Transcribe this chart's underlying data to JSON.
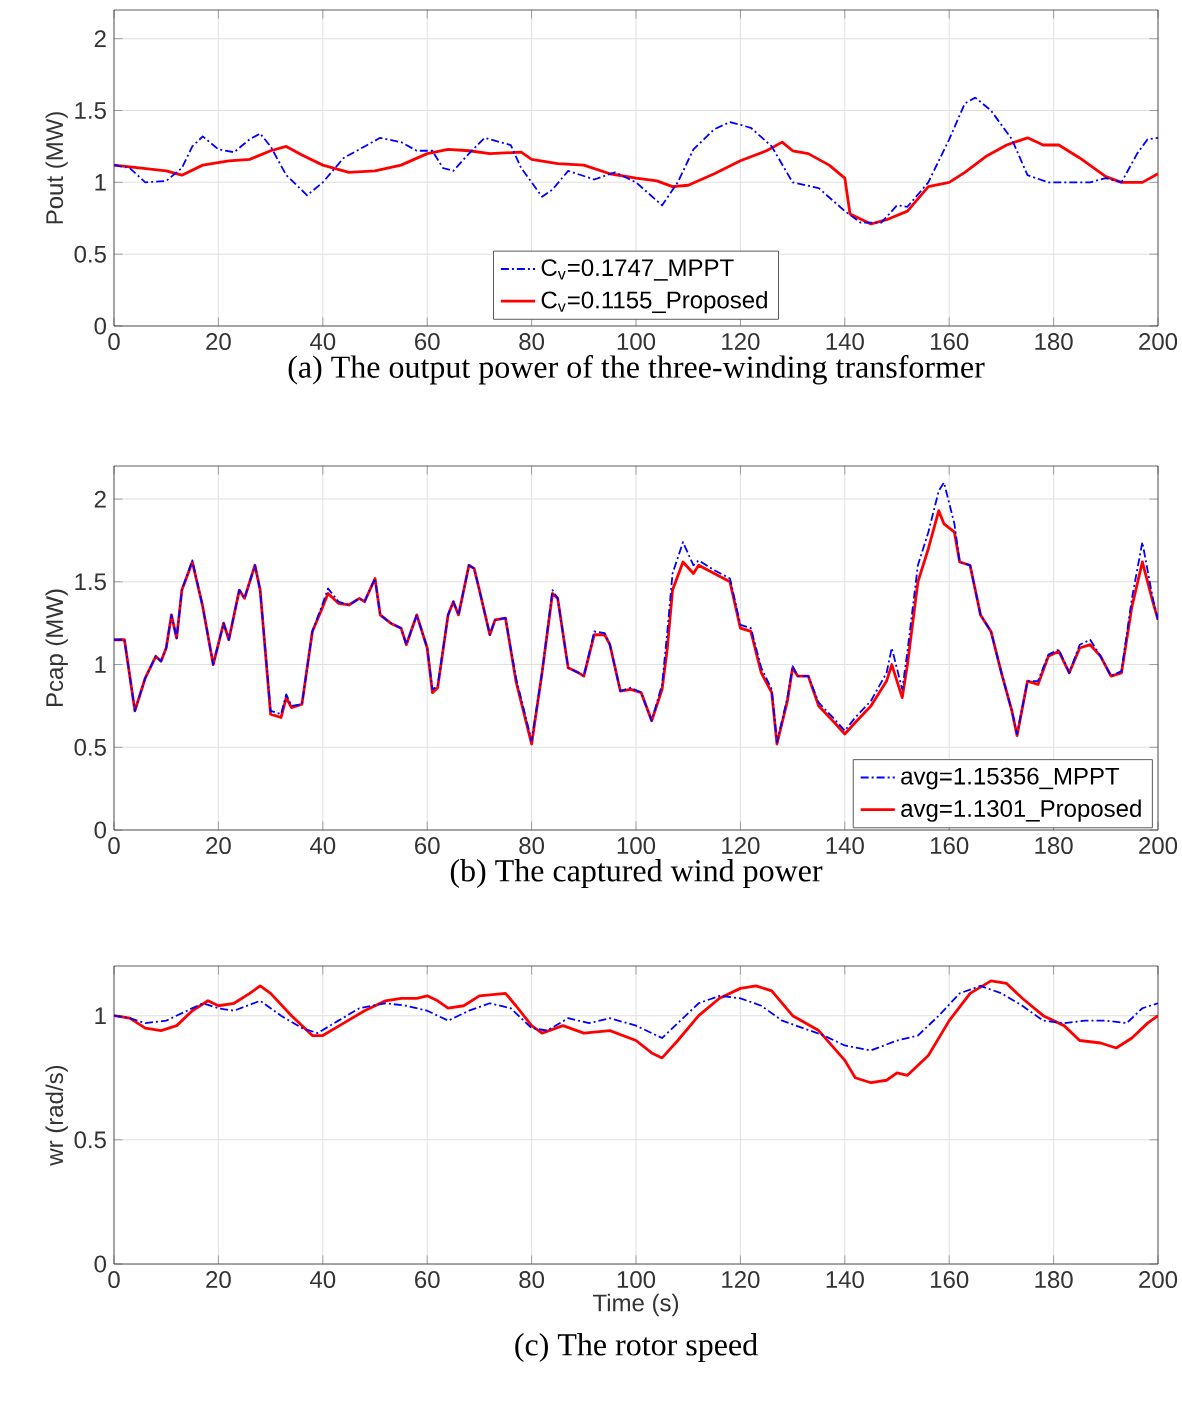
{
  "chart_data": [
    {
      "type": "line",
      "title": "(a) The output power of the three-winding transformer",
      "ylabel": "Pout (MW)",
      "xlim": [
        0,
        200
      ],
      "ylim": [
        0,
        2.2
      ],
      "xticks": [
        0,
        20,
        40,
        60,
        80,
        100,
        120,
        140,
        160,
        180,
        200
      ],
      "yticks": [
        0,
        0.5,
        1,
        1.5,
        2
      ],
      "grid": true,
      "legend": "bottom",
      "series": [
        {
          "name": "C$_{v}$=0.1747_MPPT",
          "color": "#0000ff",
          "line_style": "dashed",
          "x": [
            0,
            3,
            6,
            10,
            13,
            15,
            17,
            20,
            23,
            26,
            28,
            30,
            33,
            37,
            40,
            44,
            48,
            51,
            55,
            58,
            61,
            63,
            65,
            68,
            71,
            76,
            78,
            82,
            84,
            87,
            92,
            96,
            100,
            105,
            108,
            111,
            115,
            118,
            122,
            126,
            130,
            135,
            140,
            143,
            147,
            150,
            152,
            156,
            160,
            163,
            165,
            168,
            172,
            175,
            179,
            183,
            187,
            190,
            193,
            196,
            198,
            200
          ],
          "values": [
            1.12,
            1.1,
            1.0,
            1.01,
            1.1,
            1.25,
            1.32,
            1.23,
            1.21,
            1.3,
            1.34,
            1.25,
            1.05,
            0.91,
            1.0,
            1.17,
            1.25,
            1.31,
            1.28,
            1.22,
            1.22,
            1.1,
            1.08,
            1.2,
            1.31,
            1.26,
            1.1,
            0.9,
            0.95,
            1.08,
            1.02,
            1.07,
            1.0,
            0.84,
            1.0,
            1.23,
            1.37,
            1.42,
            1.38,
            1.25,
            1.0,
            0.96,
            0.8,
            0.72,
            0.72,
            0.84,
            0.83,
            1.0,
            1.3,
            1.55,
            1.59,
            1.5,
            1.3,
            1.05,
            1.0,
            1.0,
            1.0,
            1.03,
            1.0,
            1.2,
            1.3,
            1.31
          ]
        },
        {
          "name": "C$_{v}$=0.1155_Proposed",
          "color": "#ff0000",
          "line_style": "solid",
          "x": [
            0,
            5,
            10,
            13,
            17,
            22,
            26,
            30,
            33,
            36,
            40,
            45,
            50,
            55,
            60,
            64,
            68,
            72,
            78,
            80,
            85,
            90,
            95,
            100,
            104,
            107,
            110,
            115,
            120,
            125,
            128,
            130,
            133,
            137,
            140,
            141,
            145,
            148,
            152,
            156,
            160,
            163,
            167,
            171,
            175,
            178,
            181,
            185,
            190,
            193,
            197,
            200
          ],
          "values": [
            1.12,
            1.1,
            1.08,
            1.05,
            1.12,
            1.15,
            1.16,
            1.22,
            1.25,
            1.19,
            1.12,
            1.07,
            1.08,
            1.12,
            1.2,
            1.23,
            1.22,
            1.2,
            1.21,
            1.16,
            1.13,
            1.12,
            1.06,
            1.03,
            1.01,
            0.97,
            0.98,
            1.06,
            1.15,
            1.22,
            1.28,
            1.22,
            1.2,
            1.12,
            1.03,
            0.78,
            0.71,
            0.74,
            0.8,
            0.97,
            1.0,
            1.07,
            1.18,
            1.26,
            1.31,
            1.26,
            1.26,
            1.17,
            1.04,
            1.0,
            1.0,
            1.06
          ]
        }
      ]
    },
    {
      "type": "line",
      "title": "(b) The captured wind power",
      "ylabel": "Pcap (MW)",
      "xlim": [
        0,
        200
      ],
      "ylim": [
        0,
        2.2
      ],
      "xticks": [
        0,
        20,
        40,
        60,
        80,
        100,
        120,
        140,
        160,
        180,
        200
      ],
      "yticks": [
        0,
        0.5,
        1,
        1.5,
        2
      ],
      "grid": true,
      "legend": "bottom right",
      "series": [
        {
          "name": "avg=1.15356_MPPT",
          "color": "#0000ff",
          "line_style": "dashed",
          "x": [
            0,
            2,
            4,
            6,
            8,
            9,
            10,
            11,
            12,
            13,
            15,
            17,
            19,
            21,
            22,
            24,
            25,
            27,
            28,
            30,
            32,
            33,
            34,
            36,
            38,
            40,
            41,
            43,
            45,
            47,
            48,
            50,
            51,
            53,
            55,
            56,
            58,
            60,
            61,
            62,
            64,
            65,
            66,
            68,
            69,
            70,
            72,
            73,
            75,
            77,
            80,
            82,
            84,
            85,
            87,
            89,
            90,
            92,
            94,
            95,
            97,
            99,
            101,
            103,
            105,
            106,
            107,
            109,
            111,
            112,
            115,
            118,
            120,
            122,
            124,
            126,
            127,
            129,
            130,
            131,
            133,
            135,
            138,
            140,
            142,
            145,
            148,
            149,
            151,
            152,
            154,
            156,
            158,
            159,
            161,
            162,
            164,
            166,
            168,
            170,
            172,
            173,
            175,
            177,
            179,
            181,
            183,
            185,
            187,
            189,
            191,
            193,
            195,
            197,
            199,
            200
          ],
          "values": [
            1.15,
            1.15,
            0.72,
            0.92,
            1.05,
            1.02,
            1.1,
            1.3,
            1.16,
            1.45,
            1.63,
            1.35,
            1.0,
            1.25,
            1.15,
            1.45,
            1.4,
            1.6,
            1.45,
            0.72,
            0.7,
            0.82,
            0.75,
            0.76,
            1.2,
            1.37,
            1.46,
            1.38,
            1.36,
            1.4,
            1.38,
            1.52,
            1.3,
            1.25,
            1.22,
            1.12,
            1.3,
            1.1,
            0.85,
            0.87,
            1.3,
            1.38,
            1.3,
            1.6,
            1.58,
            1.45,
            1.18,
            1.27,
            1.28,
            0.92,
            0.54,
            0.95,
            1.45,
            1.4,
            0.98,
            0.95,
            0.93,
            1.2,
            1.19,
            1.12,
            0.84,
            0.86,
            0.83,
            0.66,
            0.88,
            1.2,
            1.55,
            1.74,
            1.6,
            1.63,
            1.57,
            1.52,
            1.24,
            1.22,
            0.98,
            0.85,
            0.53,
            0.8,
            0.99,
            0.93,
            0.93,
            0.77,
            0.67,
            0.6,
            0.68,
            0.78,
            0.95,
            1.1,
            0.85,
            1.08,
            1.6,
            1.8,
            2.05,
            2.1,
            1.85,
            1.62,
            1.6,
            1.3,
            1.2,
            0.95,
            0.72,
            0.58,
            0.9,
            0.9,
            1.06,
            1.09,
            0.95,
            1.12,
            1.15,
            1.05,
            0.93,
            0.96,
            1.4,
            1.74,
            1.4,
            1.27
          ]
        },
        {
          "name": "avg=1.1301_Proposed",
          "color": "#ff0000",
          "line_style": "solid",
          "x": [
            0,
            2,
            4,
            6,
            8,
            9,
            10,
            11,
            12,
            13,
            15,
            17,
            19,
            21,
            22,
            24,
            25,
            27,
            28,
            30,
            32,
            33,
            34,
            36,
            38,
            40,
            41,
            43,
            45,
            47,
            48,
            50,
            51,
            53,
            55,
            56,
            58,
            60,
            61,
            62,
            64,
            65,
            66,
            68,
            69,
            70,
            72,
            73,
            75,
            77,
            80,
            82,
            84,
            85,
            87,
            89,
            90,
            92,
            94,
            95,
            97,
            99,
            101,
            103,
            105,
            106,
            107,
            109,
            111,
            112,
            115,
            118,
            120,
            122,
            124,
            126,
            127,
            129,
            130,
            131,
            133,
            135,
            138,
            140,
            142,
            145,
            148,
            149,
            151,
            152,
            154,
            156,
            158,
            159,
            161,
            162,
            164,
            166,
            168,
            170,
            172,
            173,
            175,
            177,
            179,
            181,
            183,
            185,
            187,
            189,
            191,
            193,
            195,
            197,
            199,
            200
          ],
          "values": [
            1.15,
            1.15,
            0.72,
            0.92,
            1.05,
            1.02,
            1.1,
            1.3,
            1.16,
            1.45,
            1.62,
            1.35,
            1.0,
            1.25,
            1.15,
            1.45,
            1.4,
            1.6,
            1.45,
            0.7,
            0.68,
            0.8,
            0.74,
            0.76,
            1.2,
            1.35,
            1.43,
            1.37,
            1.36,
            1.4,
            1.38,
            1.52,
            1.3,
            1.25,
            1.22,
            1.12,
            1.3,
            1.1,
            0.83,
            0.86,
            1.3,
            1.38,
            1.3,
            1.6,
            1.58,
            1.45,
            1.18,
            1.27,
            1.28,
            0.9,
            0.52,
            0.95,
            1.43,
            1.4,
            0.98,
            0.95,
            0.93,
            1.18,
            1.18,
            1.12,
            0.84,
            0.85,
            0.83,
            0.66,
            0.85,
            1.1,
            1.45,
            1.62,
            1.55,
            1.6,
            1.55,
            1.5,
            1.22,
            1.2,
            0.95,
            0.83,
            0.52,
            0.78,
            0.98,
            0.93,
            0.93,
            0.75,
            0.65,
            0.58,
            0.65,
            0.75,
            0.9,
            1.0,
            0.8,
            1.0,
            1.5,
            1.7,
            1.93,
            1.85,
            1.8,
            1.62,
            1.6,
            1.3,
            1.2,
            0.95,
            0.72,
            0.57,
            0.9,
            0.88,
            1.05,
            1.08,
            0.95,
            1.1,
            1.12,
            1.05,
            0.93,
            0.95,
            1.35,
            1.62,
            1.38,
            1.27
          ]
        }
      ]
    },
    {
      "type": "line",
      "title": "(c) The rotor speed",
      "xlabel": "Time (s)",
      "ylabel": "wr (rad/s)",
      "xlim": [
        0,
        200
      ],
      "ylim": [
        0,
        1.2
      ],
      "xticks": [
        0,
        20,
        40,
        60,
        80,
        100,
        120,
        140,
        160,
        180,
        200
      ],
      "yticks": [
        0,
        0.5,
        1
      ],
      "grid": true,
      "series": [
        {
          "color": "#0000ff",
          "line_style": "dashed",
          "x": [
            0,
            3,
            6,
            10,
            14,
            17,
            20,
            23,
            28,
            32,
            36,
            39,
            43,
            47,
            52,
            56,
            60,
            64,
            68,
            72,
            76,
            80,
            83,
            87,
            91,
            95,
            100,
            105,
            108,
            112,
            116,
            120,
            124,
            128,
            132,
            136,
            140,
            145,
            150,
            154,
            158,
            162,
            166,
            170,
            174,
            178,
            182,
            186,
            190,
            194,
            197,
            200
          ],
          "values": [
            1.0,
            0.99,
            0.97,
            0.98,
            1.02,
            1.05,
            1.03,
            1.02,
            1.06,
            1.0,
            0.95,
            0.93,
            0.98,
            1.03,
            1.05,
            1.04,
            1.02,
            0.98,
            1.02,
            1.05,
            1.03,
            0.95,
            0.94,
            0.99,
            0.97,
            0.99,
            0.96,
            0.91,
            0.97,
            1.05,
            1.08,
            1.07,
            1.04,
            0.98,
            0.95,
            0.92,
            0.88,
            0.86,
            0.9,
            0.92,
            1.0,
            1.09,
            1.12,
            1.09,
            1.04,
            0.98,
            0.97,
            0.98,
            0.98,
            0.97,
            1.03,
            1.05
          ]
        },
        {
          "color": "#ff0000",
          "line_style": "solid",
          "x": [
            0,
            3,
            6,
            9,
            12,
            15,
            18,
            20,
            23,
            26,
            28,
            30,
            34,
            38,
            40,
            44,
            48,
            52,
            55,
            58,
            60,
            62,
            64,
            67,
            70,
            75,
            77,
            80,
            82,
            86,
            90,
            95,
            100,
            103,
            105,
            108,
            112,
            116,
            120,
            123,
            126,
            130,
            135,
            140,
            142,
            145,
            148,
            150,
            152,
            156,
            160,
            164,
            168,
            171,
            174,
            178,
            182,
            185,
            189,
            192,
            195,
            198,
            200
          ],
          "values": [
            1.0,
            0.99,
            0.95,
            0.94,
            0.96,
            1.02,
            1.06,
            1.04,
            1.05,
            1.09,
            1.12,
            1.09,
            1.0,
            0.92,
            0.92,
            0.97,
            1.02,
            1.06,
            1.07,
            1.07,
            1.08,
            1.06,
            1.03,
            1.04,
            1.08,
            1.09,
            1.04,
            0.96,
            0.93,
            0.96,
            0.93,
            0.94,
            0.9,
            0.85,
            0.83,
            0.9,
            1.0,
            1.07,
            1.11,
            1.12,
            1.1,
            1.0,
            0.94,
            0.82,
            0.75,
            0.73,
            0.74,
            0.77,
            0.76,
            0.84,
            0.98,
            1.09,
            1.14,
            1.13,
            1.07,
            1.0,
            0.96,
            0.9,
            0.89,
            0.87,
            0.91,
            0.97,
            1.0
          ]
        }
      ]
    }
  ]
}
